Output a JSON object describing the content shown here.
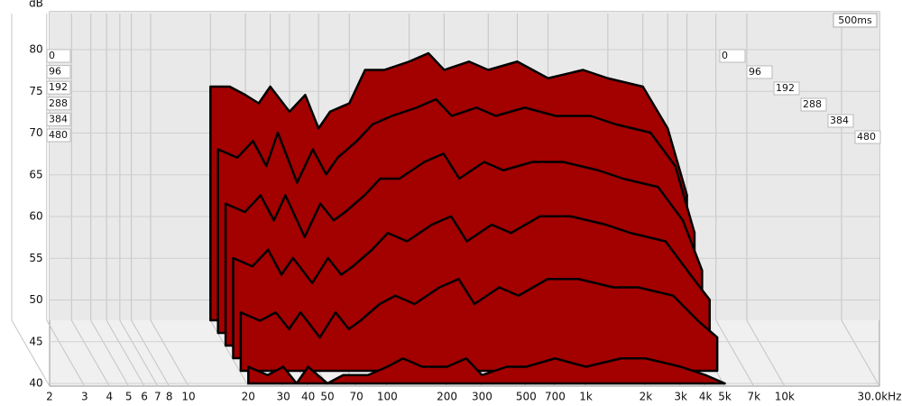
{
  "chart_data": {
    "type": "waterfall",
    "y_label": "dB",
    "time_span": "500ms",
    "xlim": [
      2,
      30000
    ],
    "log_x": true,
    "xticks": [
      2,
      3,
      4,
      5,
      6,
      7,
      8,
      10,
      20,
      30,
      40,
      50,
      70,
      100,
      200,
      300,
      500,
      700,
      {
        "value": 1000,
        "label": "1k"
      },
      {
        "value": 2000,
        "label": "2k"
      },
      {
        "value": 3000,
        "label": "3k"
      },
      {
        "value": 4000,
        "label": "4k"
      },
      {
        "value": 5000,
        "label": "5k"
      },
      {
        "value": 7000,
        "label": "7k"
      },
      {
        "value": 10000,
        "label": "10k"
      },
      {
        "value": 30000,
        "label": "30.0kHz"
      }
    ],
    "ylim": [
      40,
      80
    ],
    "yticks": [
      40,
      45,
      50,
      55,
      60,
      65,
      70,
      75,
      80
    ],
    "zlim": [
      0,
      480
    ],
    "zticks": [
      0,
      96,
      192,
      288,
      384,
      480
    ],
    "color": "#a30000",
    "x": [
      20,
      25,
      30,
      35,
      40,
      50,
      60,
      70,
      80,
      100,
      120,
      150,
      200,
      250,
      300,
      400,
      500,
      700,
      1000,
      1500,
      2000,
      3000,
      4000,
      5000
    ],
    "slices": [
      {
        "time": 0,
        "values": [
          68,
          68,
          67,
          66,
          68,
          65,
          67,
          63,
          65,
          66,
          70,
          70,
          71,
          72,
          70,
          71,
          70,
          71,
          69,
          70,
          69,
          68,
          63,
          55
        ]
      },
      {
        "time": 96,
        "values": [
          62,
          61,
          63,
          60,
          64,
          58,
          62,
          59,
          61,
          63,
          65,
          66,
          67,
          68,
          66,
          67,
          66,
          67,
          66,
          66,
          65,
          64,
          60,
          52
        ]
      },
      {
        "time": 192,
        "values": [
          57,
          56,
          58,
          55,
          58,
          53,
          57,
          55,
          56,
          58,
          60,
          60,
          62,
          63,
          60,
          62,
          61,
          62,
          62,
          61,
          60,
          59,
          55,
          49
        ]
      },
      {
        "time": 288,
        "values": [
          52,
          51,
          53,
          50,
          52,
          49,
          52,
          50,
          51,
          53,
          55,
          54,
          56,
          57,
          54,
          56,
          55,
          57,
          57,
          56,
          55,
          54,
          50,
          47
        ]
      },
      {
        "time": 384,
        "values": [
          47,
          46,
          47,
          45,
          47,
          44,
          47,
          45,
          46,
          48,
          49,
          48,
          50,
          51,
          48,
          50,
          49,
          51,
          51,
          50,
          50,
          49,
          46,
          44
        ]
      },
      {
        "time": 480,
        "values": [
          42,
          41,
          42,
          40,
          42,
          40,
          41,
          41,
          41,
          42,
          43,
          42,
          42,
          43,
          41,
          42,
          42,
          43,
          42,
          43,
          43,
          42,
          41,
          40
        ]
      }
    ]
  }
}
